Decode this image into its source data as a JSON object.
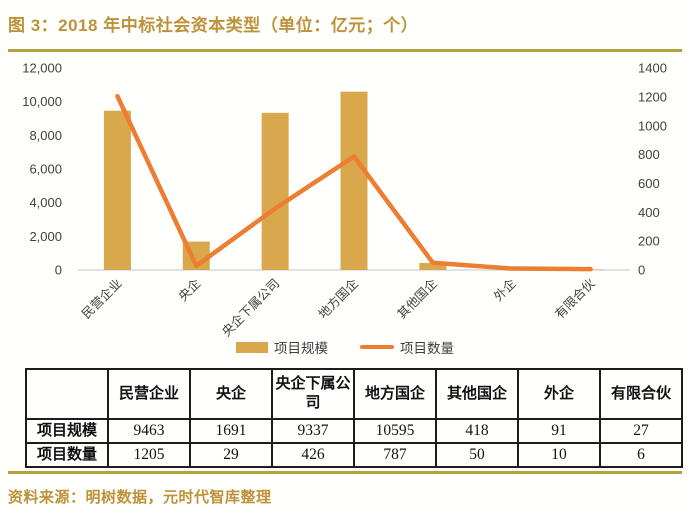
{
  "title": "图 3：2018 年中标社会资本类型（单位：亿元；个）",
  "source": "资料来源：明树数据，元时代智库整理",
  "colors": {
    "accent_gold": "#BE9238",
    "rule_gold": "#B2A23F",
    "bar": "#D9A84C",
    "line": "#ED7D31",
    "axis_text": "#404040",
    "axis_line": "#D9D9D9",
    "table_border": "#1c1c1c"
  },
  "chart_data": {
    "type": "bar",
    "subtype": "combo bar+line, dual axis",
    "categories": [
      "民营企业",
      "央企",
      "央企下属公司",
      "地方国企",
      "其他国企",
      "外企",
      "有限合伙"
    ],
    "series": [
      {
        "name": "项目规模",
        "type": "bar",
        "axis": "left",
        "values": [
          9463,
          1691,
          9337,
          10595,
          418,
          91,
          27
        ]
      },
      {
        "name": "项目数量",
        "type": "line",
        "axis": "right",
        "values": [
          1205,
          29,
          426,
          787,
          50,
          10,
          6
        ]
      }
    ],
    "left_axis": {
      "min": 0,
      "max": 12000,
      "tick_labels": [
        "0",
        "2,000",
        "4,000",
        "6,000",
        "8,000",
        "10,000",
        "12,000"
      ]
    },
    "right_axis": {
      "min": 0,
      "max": 1400,
      "tick_labels": [
        "0",
        "200",
        "400",
        "600",
        "800",
        "1000",
        "1200",
        "1400"
      ]
    },
    "grid": false,
    "legend_position": "bottom",
    "legend": [
      "项目规模",
      "项目数量"
    ]
  },
  "table": {
    "headers": [
      "",
      "民营企业",
      "央企",
      "央企下属公司",
      "地方国企",
      "其他国企",
      "外企",
      "有限合伙"
    ],
    "rows": [
      {
        "label": "项目规模",
        "values": [
          "9463",
          "1691",
          "9337",
          "10595",
          "418",
          "91",
          "27"
        ]
      },
      {
        "label": "项目数量",
        "values": [
          "1205",
          "29",
          "426",
          "787",
          "50",
          "10",
          "6"
        ]
      }
    ]
  }
}
